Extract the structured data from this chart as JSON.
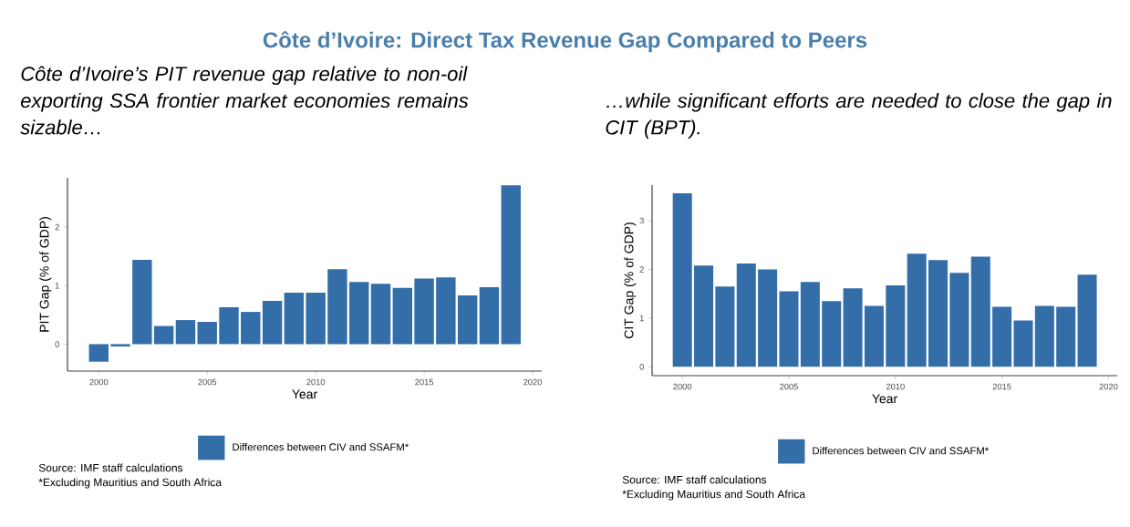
{
  "chart_data": [
    {
      "type": "bar",
      "title": "Côte d’Ivoire: Direct Tax Revenue Gap Compared to Peers",
      "subtitle": "Côte d’Ivoire’s PIT revenue gap relative to non-oil exporting SSA frontier market economies remains sizable…",
      "xlabel": "Year",
      "ylabel": "PIT Gap (% of GDP)",
      "x": [
        2000,
        2001,
        2002,
        2003,
        2004,
        2005,
        2006,
        2007,
        2008,
        2009,
        2010,
        2011,
        2012,
        2013,
        2014,
        2015,
        2016,
        2017,
        2018,
        2019
      ],
      "series": [
        {
          "name": "Differences between CIV and SSAFM*",
          "color": "#336ea9",
          "values": [
            -0.3,
            -0.04,
            1.44,
            0.31,
            0.41,
            0.38,
            0.63,
            0.55,
            0.74,
            0.88,
            0.88,
            1.28,
            1.06,
            1.03,
            0.96,
            1.12,
            1.14,
            0.83,
            0.97,
            2.71
          ]
        }
      ],
      "xlim": [
        1998.56,
        2020.42
      ],
      "ylim": [
        -0.46,
        2.84
      ],
      "xticks": [
        2000,
        2005,
        2010,
        2015,
        2020
      ],
      "yticks": [
        0,
        1,
        2
      ],
      "legend": "bottom",
      "annotations": [
        "Source: IMF staff calculations",
        "*Excluding Mauritius and South Africa"
      ]
    },
    {
      "type": "bar",
      "subtitle": "…while significant efforts are needed to close the gap in CIT (BPT).",
      "xlabel": "Year",
      "ylabel": "CIT Gap (% of GDP)",
      "x": [
        2000,
        2001,
        2002,
        2003,
        2004,
        2005,
        2006,
        2007,
        2008,
        2009,
        2010,
        2011,
        2012,
        2013,
        2014,
        2015,
        2016,
        2017,
        2018,
        2019
      ],
      "series": [
        {
          "name": "Differences between CIV and SSAFM*",
          "color": "#336ea9",
          "values": [
            3.56,
            2.08,
            1.65,
            2.12,
            2.0,
            1.55,
            1.74,
            1.35,
            1.61,
            1.25,
            1.67,
            2.32,
            2.19,
            1.93,
            2.26,
            1.23,
            0.95,
            1.25,
            1.23,
            1.89
          ]
        }
      ],
      "xlim": [
        1998.58,
        2020.41
      ],
      "ylim": [
        -0.18,
        3.73
      ],
      "xticks": [
        2000,
        2005,
        2010,
        2015,
        2020
      ],
      "yticks": [
        0,
        1,
        2,
        3
      ],
      "legend": "bottom",
      "annotations": [
        "Source: IMF staff calculations",
        "*Excluding Mauritius and South Africa"
      ]
    }
  ]
}
